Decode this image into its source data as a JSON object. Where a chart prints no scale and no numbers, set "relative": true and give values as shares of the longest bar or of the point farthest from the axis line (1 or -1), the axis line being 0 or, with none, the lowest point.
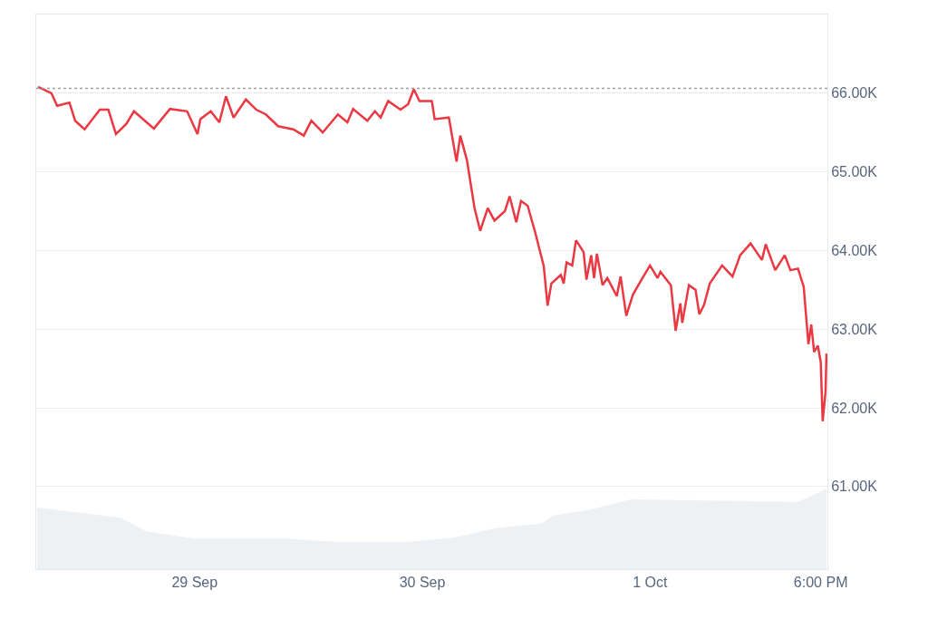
{
  "chart_data": [
    {
      "type": "line",
      "x": [
        "--09-28T07:30",
        "--09-28T08:54",
        "--09-28T09:30",
        "--09-28T10:48",
        "--09-28T11:24",
        "--09-28T12:24",
        "--09-28T14:00",
        "--09-28T14:54",
        "--09-28T15:42",
        "--09-28T16:48",
        "--09-28T17:36",
        "--09-28T19:42",
        "--09-28T21:24",
        "--09-28T23:12",
        "--09-29T00:18",
        "--09-29T00:36",
        "--09-29T01:42",
        "--09-29T02:36",
        "--09-29T03:18",
        "--09-29T04:06",
        "--09-29T05:24",
        "--09-29T06:30",
        "--09-29T07:30",
        "--09-29T08:48",
        "--09-29T10:24",
        "--09-29T11:30",
        "--09-29T12:18",
        "--09-29T13:30",
        "--09-29T15:06",
        "--09-29T16:06",
        "--09-29T16:42",
        "--09-29T18:12",
        "--09-29T19:00",
        "--09-29T19:36",
        "--09-29T20:24",
        "--09-29T21:42",
        "--09-29T22:30",
        "--09-29T23:06",
        "--09-29T23:42",
        "--09-30T01:00",
        "--09-30T01:18",
        "--09-30T02:48",
        "--09-30T03:36",
        "--09-30T04:00",
        "--09-30T04:42",
        "--09-30T05:30",
        "--09-30T06:06",
        "--09-30T06:54",
        "--09-30T07:36",
        "--09-30T08:42",
        "--09-30T09:12",
        "--09-30T09:54",
        "--09-30T10:24",
        "--09-30T11:06",
        "--09-30T11:54",
        "--09-30T12:48",
        "--09-30T13:12",
        "--09-30T13:36",
        "--09-30T14:36",
        "--09-30T14:54",
        "--09-30T15:12",
        "--09-30T15:48",
        "--09-30T16:12",
        "--09-30T17:00",
        "--09-30T17:18",
        "--09-30T17:48",
        "--09-30T18:06",
        "--09-30T18:24",
        "--09-30T19:00",
        "--09-30T19:30",
        "--09-30T20:30",
        "--09-30T20:54",
        "--09-30T21:30",
        "--09-30T22:12",
        "--09-30T23:12",
        "--10-01T00:00",
        "--10-01T00:48",
        "--10-01T01:06",
        "--10-01T02:12",
        "--10-01T02:42",
        "--10-01T03:12",
        "--10-01T03:24",
        "--10-01T04:06",
        "--10-01T04:48",
        "--10-01T05:12",
        "--10-01T05:42",
        "--10-01T06:18",
        "--10-01T07:36",
        "--10-01T08:42",
        "--10-01T09:30",
        "--10-01T10:36",
        "--10-01T11:48",
        "--10-01T12:12",
        "--10-01T13:12",
        "--10-01T14:12",
        "--10-01T14:48",
        "--10-01T15:36",
        "--10-01T16:12",
        "--10-01T16:42",
        "--10-01T17:00",
        "--10-01T17:18",
        "--10-01T17:42",
        "--10-01T18:00",
        "--10-01T18:12",
        "--10-01T18:30",
        "--10-01T18:36"
      ],
      "series": [
        {
          "color": "#ea3943",
          "values": [
            66080,
            66000,
            65840,
            65880,
            65650,
            65540,
            65790,
            65790,
            65480,
            65610,
            65770,
            65550,
            65800,
            65770,
            65480,
            65670,
            65770,
            65630,
            65960,
            65690,
            65920,
            65790,
            65730,
            65580,
            65540,
            65460,
            65650,
            65500,
            65730,
            65630,
            65800,
            65650,
            65770,
            65690,
            65900,
            65790,
            65860,
            66050,
            65900,
            65900,
            65670,
            65690,
            65130,
            65460,
            65150,
            64540,
            64250,
            64540,
            64380,
            64500,
            64690,
            64360,
            64630,
            64570,
            64230,
            63800,
            63300,
            63580,
            63690,
            63580,
            63850,
            63810,
            64130,
            63980,
            63630,
            63940,
            63650,
            63960,
            63560,
            63650,
            63420,
            63670,
            63170,
            63440,
            63650,
            63810,
            63650,
            63730,
            63560,
            62980,
            63330,
            63080,
            63560,
            63500,
            63190,
            63310,
            63580,
            63810,
            63670,
            63940,
            64090,
            63880,
            64080,
            63750,
            63940,
            63750,
            63770,
            63540,
            62810,
            63060,
            62710,
            62790,
            62580,
            61830,
            62200,
            62690
          ]
        }
      ],
      "xlim": [
        "--09-28T07:18",
        "--10-01T18:42"
      ],
      "xticks": [
        {
          "value": "--09-29",
          "label": "29 Sep"
        },
        {
          "value": "--09-30",
          "label": "30 Sep"
        },
        {
          "value": "--10-01",
          "label": "1 Oct"
        },
        {
          "value": "--10-01T18:00",
          "label": "6:00 PM"
        }
      ],
      "ylim": [
        59950,
        67000
      ],
      "yticks": [
        {
          "value": 61000,
          "label": "61.00K"
        },
        {
          "value": 62000,
          "label": "62.00K"
        },
        {
          "value": 63000,
          "label": "63.00K"
        },
        {
          "value": 64000,
          "label": "64.00K"
        },
        {
          "value": 65000,
          "label": "65.00K"
        },
        {
          "value": 66000,
          "label": "66.00K"
        }
      ],
      "ref_lines": [
        {
          "axis": "y",
          "value": 66060,
          "color": "#9aa0a8",
          "line_style": "dotted"
        }
      ],
      "grid": "y",
      "line_style": "solid",
      "marker": "none"
    },
    {
      "type": "area",
      "relative": true,
      "tick_labels": false,
      "x": [
        "--09-28T07:24",
        "--09-28T16:12",
        "--09-28T18:54",
        "--09-28T23:54",
        "--09-29T09:48",
        "--09-29T14:42",
        "--09-29T22:24",
        "--09-30T03:18",
        "--09-30T07:42",
        "--09-30T12:36",
        "--09-30T13:48",
        "--09-30T17:36",
        "--09-30T22:00",
        "--10-01T15:36",
        "--10-01T18:36"
      ],
      "xlim": [
        "--09-28T07:18",
        "--10-01T18:42"
      ],
      "series": [
        {
          "color": "#eef1f4",
          "values": [
            0.77,
            0.64,
            0.47,
            0.38,
            0.38,
            0.34,
            0.34,
            0.39,
            0.51,
            0.57,
            0.67,
            0.74,
            0.87,
            0.84,
            1
          ]
        }
      ]
    }
  ]
}
